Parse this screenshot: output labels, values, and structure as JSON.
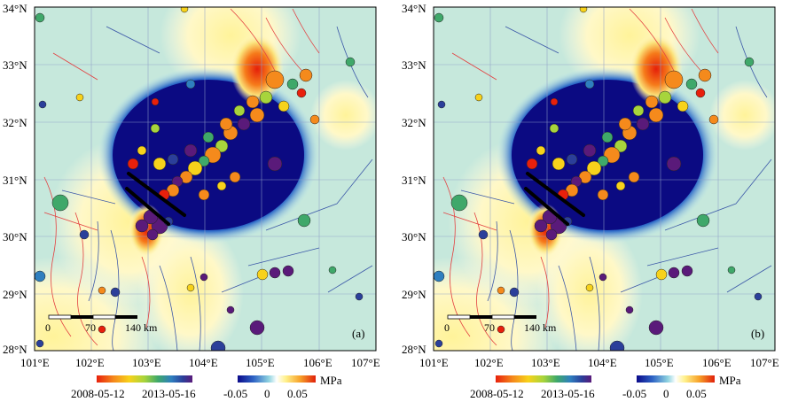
{
  "figure": {
    "panels": [
      {
        "id": "a",
        "label": "(a)"
      },
      {
        "id": "b",
        "label": "(b)"
      }
    ],
    "lon_ticks": [
      "101°E",
      "102°E",
      "103°E",
      "104°E",
      "105°E",
      "106°E",
      "107°E"
    ],
    "lat_ticks": [
      "34°N",
      "33°N",
      "32°N",
      "31°N",
      "30°N",
      "29°N",
      "28°N"
    ],
    "extent": {
      "lon": [
        101,
        107
      ],
      "lat": [
        28,
        34
      ]
    },
    "scale_bar": {
      "ticks": [
        "0",
        "70",
        "140 km"
      ]
    },
    "time_legend": {
      "start": "2008-05-12",
      "end": "2013-05-16",
      "colors": [
        "#e8200c",
        "#f58a1c",
        "#f7d21b",
        "#a7d43c",
        "#3fa86a",
        "#2f7fbf",
        "#2b3f9a",
        "#5a1a7a"
      ]
    },
    "stress_legend": {
      "ticks": [
        "-0.05",
        "0",
        "0.05"
      ],
      "unit": "MPa",
      "colors": [
        "#0a0a8a",
        "#2d62c4",
        "#8fd3e0",
        "#ffffff",
        "#fff08a",
        "#f7a32a",
        "#e0200a"
      ]
    },
    "rupture_lines": [
      {
        "from": [
          102.7,
          31.0
        ],
        "to": [
          103.55,
          30.4
        ]
      },
      {
        "from": [
          102.7,
          30.75
        ],
        "to": [
          103.2,
          30.25
        ]
      }
    ]
  }
}
